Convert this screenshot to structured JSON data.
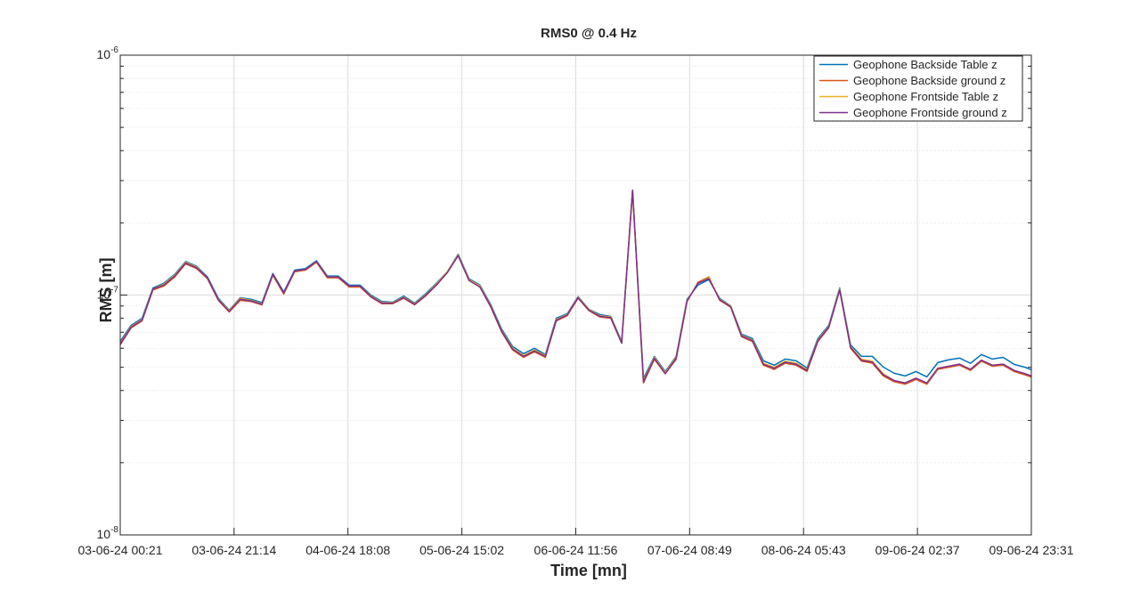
{
  "chart_data": {
    "type": "line",
    "title": "RMS0 @ 0.4 Hz",
    "xlabel": "Time [mn]",
    "ylabel": "RMS [m]",
    "x": [
      "03-06-24 00:21",
      "03-06-24 02:21",
      "03-06-24 04:21",
      "03-06-24 06:21",
      "03-06-24 08:21",
      "03-06-24 10:21",
      "03-06-24 12:21",
      "03-06-24 14:21",
      "03-06-24 16:21",
      "03-06-24 18:21",
      "03-06-24 20:21",
      "03-06-24 22:21",
      "04-06-24 00:21",
      "04-06-24 02:21",
      "04-06-24 04:21",
      "04-06-24 06:21",
      "04-06-24 08:21",
      "04-06-24 10:21",
      "04-06-24 12:21",
      "04-06-24 14:21",
      "04-06-24 16:21",
      "04-06-24 18:21",
      "04-06-24 20:21",
      "04-06-24 22:21",
      "05-06-24 00:21",
      "05-06-24 02:21",
      "05-06-24 04:21",
      "05-06-24 06:21",
      "05-06-24 08:21",
      "05-06-24 10:21",
      "05-06-24 12:21",
      "05-06-24 14:21",
      "05-06-24 16:21",
      "05-06-24 18:21",
      "05-06-24 20:21",
      "05-06-24 22:21",
      "06-06-24 00:21",
      "06-06-24 02:21",
      "06-06-24 04:21",
      "06-06-24 06:21",
      "06-06-24 08:21",
      "06-06-24 10:21",
      "06-06-24 12:21",
      "06-06-24 14:21",
      "06-06-24 16:21",
      "06-06-24 18:21",
      "06-06-24 20:21",
      "06-06-24 22:21",
      "07-06-24 00:21",
      "07-06-24 02:21",
      "07-06-24 04:21",
      "07-06-24 06:21",
      "07-06-24 08:21",
      "07-06-24 10:21",
      "07-06-24 12:21",
      "07-06-24 14:21",
      "07-06-24 16:21",
      "07-06-24 18:21",
      "07-06-24 20:21",
      "07-06-24 22:21",
      "08-06-24 00:21",
      "08-06-24 02:21",
      "08-06-24 04:21",
      "08-06-24 06:21",
      "08-06-24 08:21",
      "08-06-24 10:21",
      "08-06-24 12:21",
      "08-06-24 14:21",
      "08-06-24 16:21",
      "08-06-24 18:21",
      "08-06-24 20:21",
      "08-06-24 22:21",
      "09-06-24 00:21",
      "09-06-24 02:21",
      "09-06-24 04:21",
      "09-06-24 06:21",
      "09-06-24 08:21",
      "09-06-24 10:21",
      "09-06-24 12:21",
      "09-06-24 14:21",
      "09-06-24 16:21",
      "09-06-24 18:21",
      "09-06-24 20:21",
      "09-06-24 22:21",
      "09-06-24 23:31"
    ],
    "series": [
      {
        "name": "Geophone Backside Table z",
        "color": "#0072BD",
        "values": [
          6.41e-08,
          7.48e-08,
          8e-08,
          1.07e-07,
          1.12e-07,
          1.22e-07,
          1.38e-07,
          1.32e-07,
          1.19e-07,
          9.7e-08,
          8.65e-08,
          9.75e-08,
          9.6e-08,
          9.3e-08,
          1.23e-07,
          1.03e-07,
          1.27e-07,
          1.29e-07,
          1.39e-07,
          1.2e-07,
          1.2e-07,
          1.1e-07,
          1.1e-07,
          1e-07,
          9.4e-08,
          9.34e-08,
          9.9e-08,
          9.26e-08,
          1.01e-07,
          1.12e-07,
          1.25e-07,
          1.48e-07,
          1.17e-07,
          1.1e-07,
          9.1e-08,
          7.2e-08,
          6.1e-08,
          5.7e-08,
          6e-08,
          5.65e-08,
          8e-08,
          8.36e-08,
          9.85e-08,
          8.72e-08,
          8.29e-08,
          8.15e-08,
          6.41e-08,
          2.74e-07,
          4.49e-08,
          5.55e-08,
          4.8e-08,
          5.55e-08,
          9.6e-08,
          1.1e-07,
          1.16e-07,
          9.67e-08,
          9.02e-08,
          6.87e-08,
          6.59e-08,
          5.32e-08,
          5.1e-08,
          5.41e-08,
          5.32e-08,
          4.97e-08,
          6.59e-08,
          7.48e-08,
          1.07e-07,
          6.2e-08,
          5.55e-08,
          5.55e-08,
          5.01e-08,
          4.72e-08,
          4.6e-08,
          4.8e-08,
          4.56e-08,
          5.23e-08,
          5.37e-08,
          5.46e-08,
          5.19e-08,
          5.65e-08,
          5.41e-08,
          5.5e-08,
          5.14e-08,
          5e-08,
          4.88e-08
        ]
      },
      {
        "name": "Geophone Backside ground z",
        "color": "#D95319",
        "values": [
          6.2e-08,
          7.3e-08,
          7.8e-08,
          1.05e-07,
          1.09e-07,
          1.19e-07,
          1.35e-07,
          1.29e-07,
          1.17e-07,
          9.5e-08,
          8.5e-08,
          9.5e-08,
          9.4e-08,
          9.1e-08,
          1.21e-07,
          1.01e-07,
          1.25e-07,
          1.27e-07,
          1.37e-07,
          1.18e-07,
          1.18e-07,
          1.08e-07,
          1.08e-07,
          9.8e-08,
          9.2e-08,
          9.2e-08,
          9.7e-08,
          9.1e-08,
          9.9e-08,
          1.1e-07,
          1.24e-07,
          1.46e-07,
          1.15e-07,
          1.08e-07,
          8.9e-08,
          7e-08,
          5.9e-08,
          5.5e-08,
          5.8e-08,
          5.5e-08,
          7.8e-08,
          8.2e-08,
          9.7e-08,
          8.6e-08,
          8.1e-08,
          8e-08,
          6.3e-08,
          2.72e-07,
          4.3e-08,
          5.4e-08,
          4.7e-08,
          5.4e-08,
          9.4e-08,
          1.13e-07,
          1.19e-07,
          9.5e-08,
          8.9e-08,
          6.7e-08,
          6.4e-08,
          5.1e-08,
          4.9e-08,
          5.2e-08,
          5.1e-08,
          4.8e-08,
          6.4e-08,
          7.3e-08,
          1.05e-07,
          6e-08,
          5.3e-08,
          5.2e-08,
          4.6e-08,
          4.35e-08,
          4.25e-08,
          4.45e-08,
          4.25e-08,
          4.9e-08,
          5e-08,
          5.1e-08,
          4.85e-08,
          5.3e-08,
          5.05e-08,
          5.1e-08,
          4.8e-08,
          4.65e-08,
          4.55e-08
        ]
      },
      {
        "name": "Geophone Frontside Table z",
        "color": "#EDB120",
        "values": [
          6.3e-08,
          7.4e-08,
          7.9e-08,
          1.06e-07,
          1.11e-07,
          1.21e-07,
          1.37e-07,
          1.31e-07,
          1.18e-07,
          9.6e-08,
          8.6e-08,
          9.7e-08,
          9.5e-08,
          9.2e-08,
          1.22e-07,
          1.02e-07,
          1.26e-07,
          1.28e-07,
          1.38e-07,
          1.19e-07,
          1.19e-07,
          1.09e-07,
          1.09e-07,
          9.9e-08,
          9.3e-08,
          9.3e-08,
          9.8e-08,
          9.2e-08,
          1e-07,
          1.11e-07,
          1.25e-07,
          1.47e-07,
          1.16e-07,
          1.09e-07,
          9e-08,
          7.1e-08,
          6e-08,
          5.6e-08,
          5.9e-08,
          5.6e-08,
          7.9e-08,
          8.3e-08,
          9.8e-08,
          8.7e-08,
          8.2e-08,
          8.1e-08,
          6.35e-08,
          2.73e-07,
          4.4e-08,
          5.5e-08,
          4.75e-08,
          5.5e-08,
          9.5e-08,
          1.12e-07,
          1.18e-07,
          9.6e-08,
          9e-08,
          6.8e-08,
          6.5e-08,
          5.2e-08,
          5e-08,
          5.3e-08,
          5.2e-08,
          4.9e-08,
          6.5e-08,
          7.4e-08,
          1.06e-07,
          6.1e-08,
          5.4e-08,
          5.3e-08,
          4.7e-08,
          4.4e-08,
          4.3e-08,
          4.5e-08,
          4.3e-08,
          4.95e-08,
          5.05e-08,
          5.15e-08,
          4.9e-08,
          5.35e-08,
          5.1e-08,
          5.15e-08,
          4.85e-08,
          4.7e-08,
          4.6e-08
        ]
      },
      {
        "name": "Geophone Frontside ground z",
        "color": "#7E2F8E",
        "values": [
          6.25e-08,
          7.35e-08,
          7.85e-08,
          1.06e-07,
          1.1e-07,
          1.2e-07,
          1.36e-07,
          1.3e-07,
          1.18e-07,
          9.55e-08,
          8.55e-08,
          9.6e-08,
          9.45e-08,
          9.15e-08,
          1.22e-07,
          1.02e-07,
          1.26e-07,
          1.28e-07,
          1.38e-07,
          1.19e-07,
          1.19e-07,
          1.09e-07,
          1.09e-07,
          9.85e-08,
          9.25e-08,
          9.25e-08,
          9.75e-08,
          9.15e-08,
          9.95e-08,
          1.1e-07,
          1.24e-07,
          1.46e-07,
          1.15e-07,
          1.08e-07,
          8.95e-08,
          7.05e-08,
          5.95e-08,
          5.55e-08,
          5.85e-08,
          5.55e-08,
          7.85e-08,
          8.25e-08,
          9.75e-08,
          8.65e-08,
          8.15e-08,
          8.05e-08,
          6.3e-08,
          2.73e-07,
          4.35e-08,
          5.45e-08,
          4.7e-08,
          5.45e-08,
          9.45e-08,
          1.12e-07,
          1.17e-07,
          9.55e-08,
          8.95e-08,
          6.75e-08,
          6.45e-08,
          5.15e-08,
          4.95e-08,
          5.25e-08,
          5.15e-08,
          4.85e-08,
          6.45e-08,
          7.35e-08,
          1.05e-07,
          6.05e-08,
          5.35e-08,
          5.25e-08,
          4.65e-08,
          4.4e-08,
          4.3e-08,
          4.5e-08,
          4.3e-08,
          4.95e-08,
          5.05e-08,
          5.15e-08,
          4.9e-08,
          5.35e-08,
          5.1e-08,
          5.15e-08,
          4.85e-08,
          4.7e-08,
          4.6e-08
        ]
      }
    ],
    "xlim": [
      "03-06-24 00:21",
      "09-06-24 23:31"
    ],
    "xticks": [
      "03-06-24 00:21",
      "03-06-24 21:14",
      "04-06-24 18:08",
      "05-06-24 15:02",
      "06-06-24 11:56",
      "07-06-24 08:49",
      "08-06-24 05:43",
      "09-06-24 02:37",
      "09-06-24 23:31"
    ],
    "ylim": [
      1e-08,
      1e-06
    ],
    "yticks": [
      {
        "value": 1e-08,
        "label": "10-8"
      },
      {
        "value": 1e-07,
        "label": "10-7"
      },
      {
        "value": 1e-06,
        "label": "10-6"
      }
    ],
    "log_y": true,
    "grid": true,
    "legend": "top-right"
  }
}
